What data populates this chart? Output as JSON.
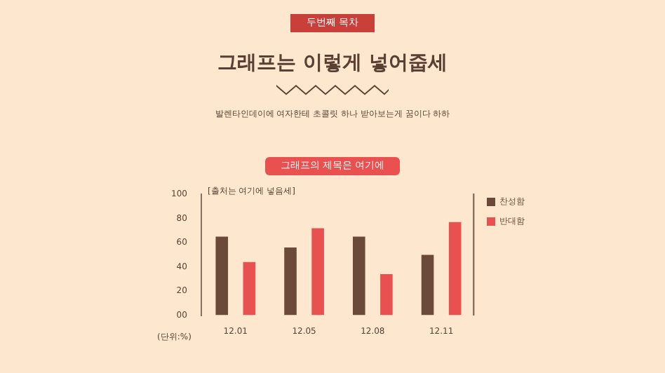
{
  "chart_data": {
    "type": "bar",
    "title": "그래프의 제목은 여기에",
    "subtitle": "그래프는 이렇게 넣어줍세",
    "ylabel": "(단위:%)",
    "annotations": [
      "두번째 목차",
      "발렌타인데이에 여자한테 초콜릿 하나 받아보는게 꿈이다 하하",
      "[출처는 여기에 넣음세]"
    ],
    "categories": [
      "12.01",
      "12.05",
      "12.08",
      "12.11"
    ],
    "series": [
      {
        "name": "찬성함",
        "color": "#6b4a3a",
        "values": [
          65,
          56,
          65,
          50
        ]
      },
      {
        "name": "반대함",
        "color": "#e8514f",
        "values": [
          44,
          72,
          34,
          77
        ]
      }
    ],
    "ylim": [
      0,
      100
    ],
    "yticks": [
      {
        "value": 0,
        "label": "00"
      },
      20,
      40,
      60,
      80,
      100
    ],
    "grid": false,
    "legend": "right"
  }
}
